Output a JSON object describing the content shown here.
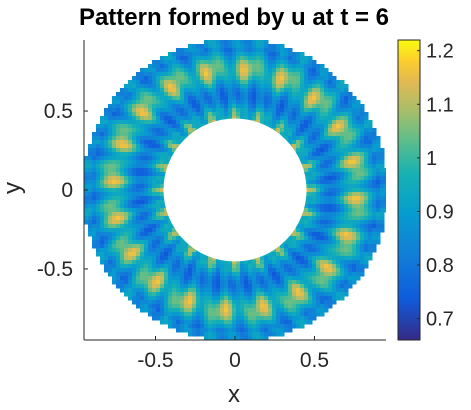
{
  "chart_data": {
    "type": "heatmap",
    "title": "Pattern formed by u at t = 6",
    "xlabel": "x",
    "ylabel": "y",
    "xlim": [
      -0.95,
      0.95
    ],
    "ylim": [
      -0.95,
      0.95
    ],
    "x_ticks": [
      -0.5,
      0,
      0.5
    ],
    "x_tick_labels": [
      "-0.5",
      "0",
      "0.5"
    ],
    "y_ticks": [
      -0.5,
      0,
      0.5
    ],
    "y_tick_labels": [
      "-0.5",
      "0",
      "0.5"
    ],
    "domain": {
      "shape": "annulus",
      "inner_radius": 0.45,
      "outer_radius": 0.95
    },
    "pattern": {
      "angular_spots": 20,
      "radial_bands": 3
    },
    "color_range": [
      0.66,
      1.22
    ],
    "colorbar": {
      "ticks": [
        0.7,
        0.8,
        0.9,
        1.0,
        1.1,
        1.2
      ],
      "tick_labels": [
        "0.7",
        "0.8",
        "0.9",
        "1",
        "1.1",
        "1.2"
      ],
      "colormap": "parula"
    },
    "colors": {
      "low": "#352a87",
      "mid": "#0fada1",
      "high": "#f9fb0e"
    }
  }
}
